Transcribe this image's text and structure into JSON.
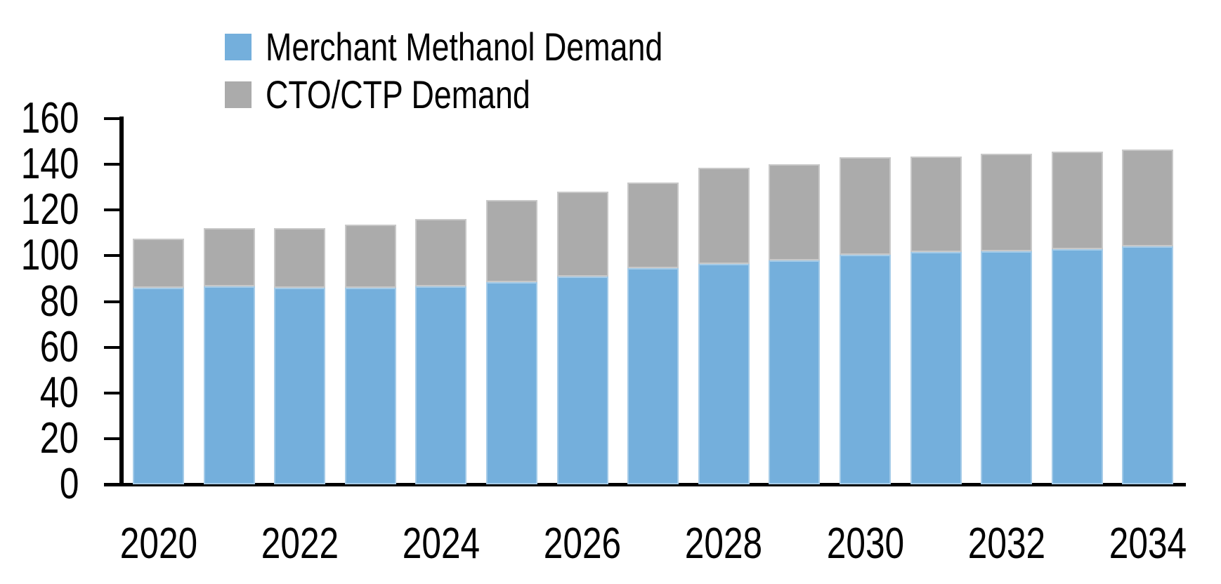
{
  "chart_data": {
    "type": "bar",
    "stacked": true,
    "title": "",
    "xlabel": "",
    "ylabel": "",
    "categories": [
      "2020",
      "2021",
      "2022",
      "2023",
      "2024",
      "2025",
      "2026",
      "2027",
      "2028",
      "2029",
      "2030",
      "2031",
      "2032",
      "2033",
      "2034"
    ],
    "series": [
      {
        "name": "Merchant Methanol Demand",
        "color": "#74AFDC",
        "values": [
          86,
          86.5,
          86,
          86,
          86.5,
          88.5,
          91,
          94.5,
          96.5,
          98,
          100.5,
          101.5,
          102,
          103,
          104
        ]
      },
      {
        "name": "CTO/CTP Demand",
        "color": "#ABABAB",
        "values": [
          21.5,
          25.5,
          26,
          27.5,
          29.5,
          36,
          37,
          37.5,
          42,
          42,
          42.5,
          42,
          42.5,
          42.5,
          42.5
        ]
      }
    ],
    "totals": [
      107.5,
      112,
      112,
      113.5,
      116,
      124.5,
      128,
      132,
      138.5,
      140,
      143,
      143.5,
      144.5,
      145.5,
      146.5
    ],
    "ylim": [
      0,
      160
    ],
    "yticks": [
      0,
      20,
      40,
      60,
      80,
      100,
      120,
      140,
      160
    ],
    "xtick_labels": [
      "2020",
      "2022",
      "2024",
      "2026",
      "2028",
      "2030",
      "2032",
      "2034"
    ],
    "legend_position": "top-left",
    "grid": false,
    "axis_color": "#000000",
    "text_color": "#000000"
  }
}
